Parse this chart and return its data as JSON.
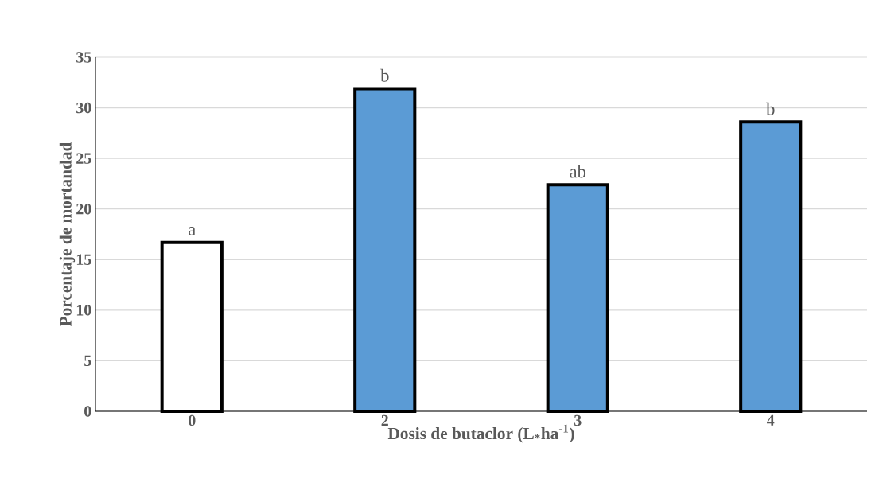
{
  "chart_data": {
    "type": "bar",
    "xlabel": "Dosis de butaclor (L$_{*}$ha$^{-1}$)",
    "ylabel": "Porcentaje de mortandad",
    "categories": [
      "0",
      "2",
      "3",
      "4"
    ],
    "values": [
      16.7,
      31.9,
      22.4,
      28.6
    ],
    "colors": [
      "#ffffff",
      "#5b9bd5",
      "#5b9bd5",
      "#5b9bd5"
    ],
    "ylim": [
      0,
      35
    ],
    "yticks": [
      0,
      5,
      10,
      15,
      20,
      25,
      30,
      35
    ],
    "grid": "y",
    "annotations": [
      {
        "text": "a",
        "x": "0",
        "y": 16.7
      },
      {
        "text": "b",
        "x": "2",
        "y": 31.9
      },
      {
        "text": "ab",
        "x": "3",
        "y": 22.4
      },
      {
        "text": "b",
        "x": "4",
        "y": 28.6
      }
    ]
  }
}
